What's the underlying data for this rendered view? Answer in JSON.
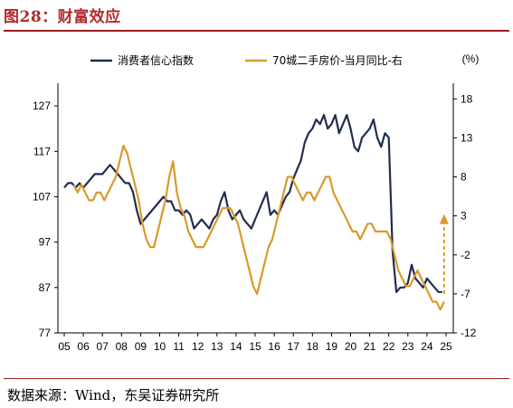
{
  "header": {
    "title": "图28：财富效应"
  },
  "footer": {
    "source": "数据来源：Wind，东吴证券研究所"
  },
  "chart_data": {
    "type": "line",
    "title": "",
    "xlabel": "",
    "ylabel_left": "",
    "ylabel_right": "(%)",
    "x_ticks": [
      "05",
      "06",
      "07",
      "08",
      "09",
      "10",
      "11",
      "12",
      "13",
      "14",
      "15",
      "16",
      "17",
      "18",
      "19",
      "20",
      "21",
      "22",
      "23",
      "24",
      "25"
    ],
    "ylim_left": [
      77,
      132
    ],
    "ylim_right": [
      -12,
      20
    ],
    "yticks_left": [
      77,
      87,
      97,
      107,
      117,
      127
    ],
    "yticks_right": [
      -12,
      -7,
      -2,
      3,
      8,
      13,
      18
    ],
    "legend_position": "top",
    "grid": false,
    "colors": {
      "left": "#1f2d4e",
      "right": "#d89a2a"
    },
    "series": [
      {
        "name": "消费者信心指数",
        "axis": "left",
        "color": "#1f2d4e",
        "x": [
          2005.0,
          2005.2,
          2005.4,
          2005.6,
          2005.8,
          2006.0,
          2006.2,
          2006.4,
          2006.6,
          2006.8,
          2007.0,
          2007.2,
          2007.4,
          2007.6,
          2007.8,
          2008.0,
          2008.2,
          2008.4,
          2008.6,
          2008.8,
          2009.0,
          2009.2,
          2009.4,
          2009.6,
          2009.8,
          2010.0,
          2010.2,
          2010.4,
          2010.6,
          2010.8,
          2011.0,
          2011.2,
          2011.4,
          2011.6,
          2011.8,
          2012.0,
          2012.2,
          2012.4,
          2012.6,
          2012.8,
          2013.0,
          2013.2,
          2013.4,
          2013.6,
          2013.8,
          2014.0,
          2014.2,
          2014.4,
          2014.6,
          2014.8,
          2015.0,
          2015.2,
          2015.4,
          2015.6,
          2015.8,
          2016.0,
          2016.2,
          2016.4,
          2016.6,
          2016.8,
          2017.0,
          2017.2,
          2017.4,
          2017.6,
          2017.8,
          2018.0,
          2018.2,
          2018.4,
          2018.6,
          2018.8,
          2019.0,
          2019.2,
          2019.4,
          2019.6,
          2019.8,
          2020.0,
          2020.2,
          2020.4,
          2020.6,
          2020.8,
          2021.0,
          2021.2,
          2021.4,
          2021.6,
          2021.8,
          2022.0,
          2022.2,
          2022.4,
          2022.6,
          2022.8,
          2023.0,
          2023.2,
          2023.4,
          2023.6,
          2023.8,
          2024.0,
          2024.2,
          2024.4,
          2024.6,
          2024.8
        ],
        "values": [
          109,
          110,
          110,
          109,
          110,
          109,
          110,
          111,
          112,
          112,
          112,
          113,
          114,
          113,
          112,
          111,
          110,
          110,
          108,
          104,
          101,
          102,
          103,
          104,
          105,
          106,
          107,
          106,
          106,
          104,
          104,
          103,
          104,
          103,
          100,
          101,
          102,
          101,
          100,
          102,
          103,
          106,
          108,
          104,
          102,
          103,
          104,
          102,
          101,
          100,
          102,
          104,
          106,
          108,
          103,
          104,
          103,
          105,
          107,
          108,
          111,
          113,
          115,
          119,
          121,
          122,
          124,
          123,
          125,
          122,
          123,
          125,
          121,
          123,
          125,
          122,
          118,
          117,
          120,
          121,
          122,
          124,
          120,
          118,
          121,
          120,
          95,
          86,
          87,
          87,
          88,
          92,
          89,
          88,
          87,
          89,
          88,
          87,
          86,
          86
        ]
      },
      {
        "name": "70城二手房价-当月同比-右",
        "axis": "right",
        "color": "#d89a2a",
        "x": [
          2005.5,
          2005.7,
          2005.9,
          2006.1,
          2006.3,
          2006.5,
          2006.7,
          2006.9,
          2007.1,
          2007.3,
          2007.5,
          2007.7,
          2007.9,
          2008.1,
          2008.3,
          2008.5,
          2008.7,
          2008.9,
          2009.1,
          2009.3,
          2009.5,
          2009.7,
          2009.9,
          2010.1,
          2010.3,
          2010.5,
          2010.7,
          2010.9,
          2011.1,
          2011.3,
          2011.5,
          2011.7,
          2011.9,
          2012.1,
          2012.3,
          2012.5,
          2012.7,
          2012.9,
          2013.1,
          2013.3,
          2013.5,
          2013.7,
          2013.9,
          2014.1,
          2014.3,
          2014.5,
          2014.7,
          2014.9,
          2015.1,
          2015.3,
          2015.5,
          2015.7,
          2015.9,
          2016.1,
          2016.3,
          2016.5,
          2016.7,
          2016.9,
          2017.1,
          2017.3,
          2017.5,
          2017.7,
          2017.9,
          2018.1,
          2018.3,
          2018.5,
          2018.7,
          2018.9,
          2019.1,
          2019.3,
          2019.5,
          2019.7,
          2019.9,
          2020.1,
          2020.3,
          2020.5,
          2020.7,
          2020.9,
          2021.1,
          2021.3,
          2021.5,
          2021.7,
          2021.9,
          2022.1,
          2022.3,
          2022.5,
          2022.7,
          2022.9,
          2023.1,
          2023.3,
          2023.5,
          2023.7,
          2023.9,
          2024.1,
          2024.3,
          2024.5,
          2024.7,
          2024.9
        ],
        "values": [
          7,
          6,
          7,
          6,
          5,
          5,
          6,
          6,
          5,
          6,
          7,
          8,
          10,
          12,
          11,
          9,
          7,
          5,
          2,
          0,
          -1,
          -1,
          1,
          3,
          5,
          8,
          10,
          6,
          4,
          3,
          1,
          0,
          -1,
          -1,
          -1,
          0,
          1,
          2,
          3,
          4,
          4,
          4,
          3,
          2,
          0,
          -2,
          -4,
          -6,
          -7,
          -5,
          -3,
          -1,
          0,
          2,
          4,
          6,
          8,
          8,
          7,
          6,
          5,
          6,
          6,
          5,
          6,
          7,
          8,
          8,
          6,
          5,
          4,
          3,
          2,
          1,
          1,
          0,
          1,
          2,
          2,
          1,
          1,
          1,
          1,
          0,
          -2,
          -4,
          -5,
          -6,
          -6,
          -5,
          -4,
          -5,
          -6,
          -7,
          -8,
          -8,
          -9,
          -8
        ],
        "projection_arrow": {
          "from": [
            2024.9,
            -7
          ],
          "to": [
            2024.9,
            3
          ]
        }
      }
    ]
  }
}
